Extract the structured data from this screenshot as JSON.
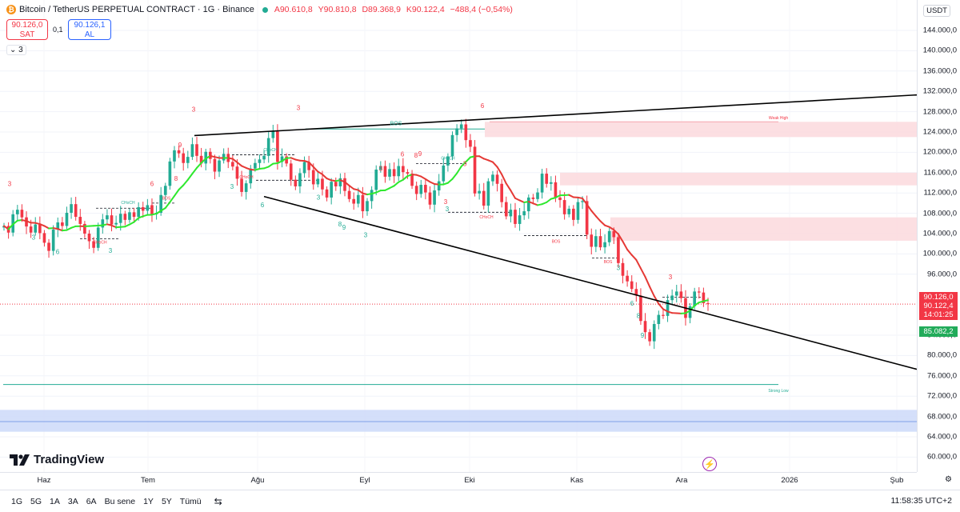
{
  "header": {
    "symbol_icon": "bitcoin-icon",
    "title": "Bitcoin / TetherUS PERPETUAL CONTRACT · 1G · Binance",
    "ohlc": {
      "open": "A90.610,8",
      "high": "Y90.810,8",
      "low": "D89.368,9",
      "close": "K90.122,4",
      "change": "−488,4 (−0,54%)"
    }
  },
  "trade": {
    "sell_price": "90.126,0",
    "sell_label": "SAT",
    "spread": "0,1",
    "buy_price": "90.126,1",
    "buy_label": "AL"
  },
  "indicators_toggle": "3",
  "brand": "TradingView",
  "price_axis": {
    "currency": "USDT",
    "ticks": [
      "144.000,0",
      "140.000,0",
      "136.000,0",
      "132.000,0",
      "128.000,0",
      "124.000,0",
      "120.000,0",
      "116.000,0",
      "112.000,0",
      "108.000,0",
      "104.000,0",
      "100.000,0",
      "96.000,0",
      "84.000,0",
      "80.000,0",
      "76.000,0",
      "72.000,0",
      "68.000,0",
      "64.000,0",
      "60.000,0"
    ],
    "last_price": "90.126,0",
    "last_close": "90.122,4",
    "countdown": "14:01:25",
    "ma_value": "85.082,2"
  },
  "time_axis": {
    "ticks": [
      "Haz",
      "Tem",
      "Ağu",
      "Eyl",
      "Eki",
      "Kas",
      "Ara",
      "2026",
      "Şub"
    ]
  },
  "bottom_bar": {
    "ranges": [
      "1G",
      "5G",
      "1A",
      "3A",
      "6A",
      "Bu sene",
      "1Y",
      "5Y",
      "Tümü"
    ],
    "clock": "11:58:35 UTC+2"
  },
  "chart_labels": {
    "bos": "BOS",
    "choch": "CHoCH",
    "weak_high": "Weak High",
    "strong_low": "Strong Low"
  },
  "colors": {
    "up": "#22ab94",
    "down": "#f23645",
    "ma_up": "#2ee82e",
    "ma_down": "#e53935",
    "supply_zone": "#fbd9dd",
    "demand_zone": "#cfdcfa"
  },
  "chart_data": {
    "type": "candlestick",
    "symbol": "BTCUSDT.P",
    "timeframe": "1G",
    "ylim": [
      60000,
      146000
    ],
    "x_labels": [
      "Haz",
      "Tem",
      "Ağu",
      "Eyl",
      "Eki",
      "Kas",
      "Ara",
      "2026",
      "Şub"
    ],
    "closes": [
      105500,
      104200,
      107800,
      108700,
      107200,
      105400,
      104200,
      105800,
      104100,
      102200,
      100600,
      104800,
      106200,
      105500,
      108100,
      109800,
      107300,
      105900,
      104000,
      102500,
      101200,
      105200,
      106800,
      107600,
      105800,
      106100,
      107900,
      106700,
      108200,
      107300,
      109200,
      108500,
      109600,
      107800,
      108100,
      111600,
      113400,
      118200,
      120400,
      119800,
      117900,
      119100,
      121600,
      119300,
      117800,
      120100,
      118700,
      116200,
      118400,
      119700,
      118100,
      117200,
      114800,
      112200,
      113900,
      116800,
      117900,
      118600,
      119300,
      122800,
      124100,
      118100,
      119200,
      117800,
      114600,
      113300,
      115900,
      118100,
      116500,
      113700,
      114800,
      112700,
      111100,
      114200,
      113300,
      114900,
      112400,
      110800,
      109900,
      111600,
      108400,
      110400,
      112600,
      116600,
      117300,
      115200,
      116700,
      115300,
      117300,
      116100,
      115800,
      113400,
      111800,
      113600,
      112100,
      109700,
      112500,
      114300,
      117400,
      119200,
      123400,
      124700,
      125500,
      122400,
      121100,
      111900,
      112400,
      109500,
      114300,
      115600,
      113800,
      110200,
      107400,
      108700,
      105900,
      107600,
      108400,
      111100,
      110800,
      112100,
      115800,
      113800,
      114100,
      111100,
      110600,
      107800,
      108900,
      106700,
      110200,
      110400,
      103800,
      101400,
      103500,
      101300,
      102300,
      104500,
      103300,
      98200,
      95700,
      94600,
      93100,
      91800,
      86800,
      84600,
      82800,
      86200,
      88000,
      87800,
      90900,
      91800,
      92600,
      91300,
      87400,
      89700,
      92600,
      92400,
      90300,
      90126
    ]
  }
}
